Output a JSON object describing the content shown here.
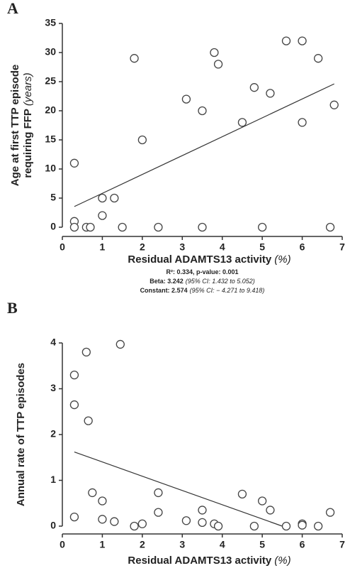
{
  "chart_data": [
    {
      "type": "scatter",
      "panel_label": "A",
      "y_label": [
        "Age at first TTP episode",
        "requiring FFP",
        "(years)"
      ],
      "x_label": [
        "Residual ADAMTS13 activity",
        "(%)"
      ],
      "stats": [
        [
          "R²: 0.334, p-value: 0.001"
        ],
        [
          "Beta: 3.242",
          "(95% CI: 1.432 to 5.052)"
        ],
        [
          "Constant: 2.574",
          "(95% CI: − 4.271 to 9.418)"
        ]
      ],
      "x": [
        0.3,
        0.3,
        0.3,
        0.6,
        0.7,
        1,
        1,
        1.3,
        1.5,
        1.8,
        2,
        2.4,
        3.1,
        3.5,
        3.5,
        3.8,
        3.9,
        4.5,
        4.8,
        5,
        5.2,
        5.6,
        6,
        6,
        6.4,
        6.7,
        6.8
      ],
      "y": [
        11,
        1,
        0,
        0,
        0,
        5,
        2,
        5,
        0,
        29,
        15,
        0,
        22,
        20,
        0,
        30,
        28,
        18,
        24,
        0,
        23,
        32,
        32,
        18,
        29,
        0,
        21
      ],
      "trend_line": {
        "x": [
          0.3,
          6.8
        ],
        "y": [
          3.55,
          24.62
        ]
      },
      "xlim": [
        0,
        7
      ],
      "xticks": [
        0,
        1,
        2,
        3,
        4,
        5,
        6,
        7
      ],
      "ylim": [
        0,
        35
      ],
      "yticks": [
        0,
        5,
        10,
        15,
        20,
        25,
        30,
        35
      ]
    },
    {
      "type": "scatter",
      "panel_label": "B",
      "y_label": [
        "Annual rate of TTP episodes"
      ],
      "x_label": [
        "Residual ADAMTS13 activity",
        "(%)"
      ],
      "x": [
        0.3,
        0.3,
        0.3,
        0.6,
        0.65,
        0.75,
        1,
        1,
        1.3,
        1.45,
        1.8,
        2,
        2.4,
        2.4,
        3.1,
        3.5,
        3.5,
        3.8,
        3.9,
        4.5,
        4.8,
        5,
        5.2,
        5.6,
        6,
        6,
        6.4,
        6.7
      ],
      "y": [
        3.3,
        2.65,
        0.2,
        3.8,
        2.3,
        0.73,
        0.55,
        0.15,
        0.1,
        3.97,
        0,
        0.05,
        0.73,
        0.3,
        0.12,
        0.35,
        0.08,
        0.05,
        0,
        0.7,
        0,
        0.55,
        0.35,
        0,
        0.05,
        0.02,
        0,
        0.3
      ],
      "trend_line": {
        "x": [
          0.3,
          5.5
        ],
        "y": [
          1.62,
          0
        ]
      },
      "xlim": [
        0,
        7
      ],
      "xticks": [
        0,
        1,
        2,
        3,
        4,
        5,
        6,
        7
      ],
      "ylim": [
        0,
        4
      ],
      "yticks": [
        0,
        1,
        2,
        3,
        4
      ]
    }
  ]
}
